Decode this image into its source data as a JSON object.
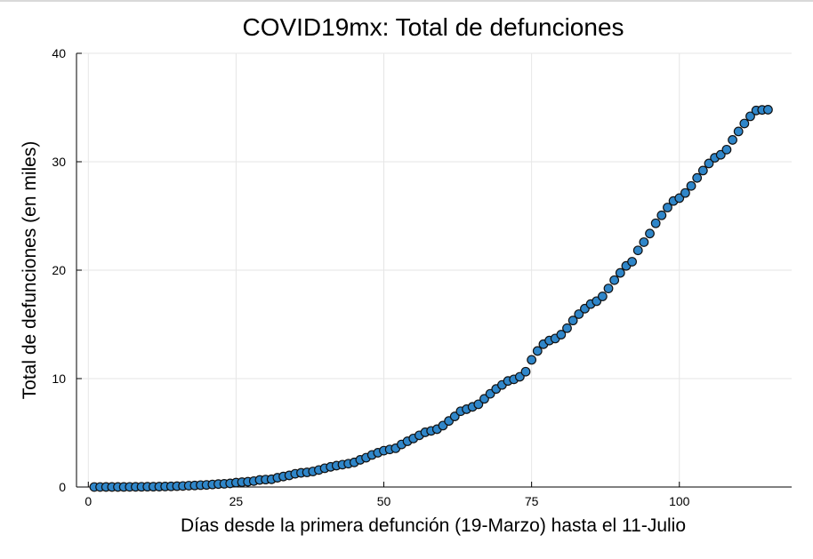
{
  "chart_data": {
    "type": "scatter",
    "title": "COVID19mx: Total de defunciones",
    "xlabel": "Días desde la primera defunción (19-Marzo) hasta el 11-Julio",
    "ylabel": "Total de defunciones (en miles)",
    "xlim": [
      -2,
      119
    ],
    "ylim": [
      0,
      40
    ],
    "xticks": [
      0,
      25,
      50,
      75,
      100
    ],
    "yticks": [
      0,
      10,
      20,
      30,
      40
    ],
    "grid": true,
    "legend": "none",
    "marker_color": "#2f86c9",
    "series": [
      {
        "x": [
          1,
          2,
          3,
          4,
          5,
          6,
          7,
          8,
          9,
          10,
          11,
          12,
          13,
          14,
          15,
          16,
          17,
          18,
          19,
          20,
          21,
          22,
          23,
          24,
          25,
          26,
          27,
          28,
          29,
          30,
          31,
          32,
          33,
          34,
          35,
          36,
          37,
          38,
          39,
          40,
          41,
          42,
          43,
          44,
          45,
          46,
          47,
          48,
          49,
          50,
          51,
          52,
          53,
          54,
          55,
          56,
          57,
          58,
          59,
          60,
          61,
          62,
          63,
          64,
          65,
          66,
          67,
          68,
          69,
          70,
          71,
          72,
          73,
          74,
          75,
          76,
          77,
          78,
          79,
          80,
          81,
          82,
          83,
          84,
          85,
          86,
          87,
          88,
          89,
          90,
          91,
          92,
          93,
          94,
          95,
          96,
          97,
          98,
          99,
          100,
          101,
          102,
          103,
          104,
          105,
          106,
          107,
          108,
          109,
          110,
          111,
          112,
          113,
          114,
          115
        ],
        "y": [
          0.001,
          0.002,
          0.004,
          0.005,
          0.006,
          0.008,
          0.012,
          0.016,
          0.02,
          0.028,
          0.029,
          0.037,
          0.05,
          0.06,
          0.079,
          0.094,
          0.125,
          0.141,
          0.174,
          0.194,
          0.233,
          0.273,
          0.296,
          0.332,
          0.406,
          0.449,
          0.486,
          0.546,
          0.65,
          0.686,
          0.712,
          0.857,
          0.97,
          1.069,
          1.221,
          1.305,
          1.351,
          1.434,
          1.569,
          1.732,
          1.859,
          1.972,
          2.061,
          2.154,
          2.271,
          2.507,
          2.704,
          2.961,
          3.16,
          3.353,
          3.465,
          3.573,
          3.926,
          4.22,
          4.477,
          4.767,
          5.045,
          5.177,
          5.332,
          5.666,
          6.09,
          6.51,
          6.989,
          7.179,
          7.394,
          7.633,
          8.134,
          8.597,
          9.044,
          9.415,
          9.779,
          9.93,
          10.167,
          10.637,
          11.729,
          12.545,
          13.17,
          13.511,
          13.699,
          14.053,
          14.649,
          15.357,
          15.944,
          16.448,
          16.872,
          17.141,
          17.58,
          18.31,
          19.08,
          19.747,
          20.394,
          20.781,
          21.825,
          22.584,
          23.377,
          24.324,
          25.06,
          25.779,
          26.381,
          26.648,
          27.121,
          27.769,
          28.51,
          29.189,
          29.843,
          30.366,
          30.639,
          31.119,
          32.014,
          32.796,
          33.526,
          34.191,
          34.73,
          34.78,
          34.8
        ]
      }
    ]
  }
}
